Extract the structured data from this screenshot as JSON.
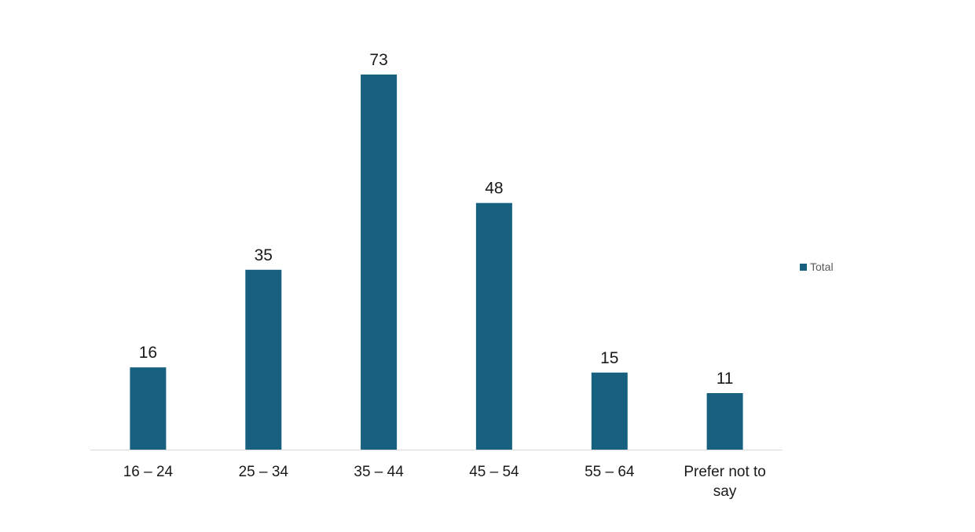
{
  "chart_data": {
    "type": "bar",
    "categories": [
      "16 – 24",
      "25 – 34",
      "35 – 44",
      "45 – 54",
      "55 – 64",
      "Prefer not to say"
    ],
    "series": [
      {
        "name": "Total",
        "values": [
          16,
          35,
          73,
          48,
          15,
          11
        ],
        "color": "#17607f"
      }
    ],
    "data_labels": true,
    "legend": {
      "position": "right",
      "entries": [
        "Total"
      ]
    },
    "grid": false,
    "ylim": [
      0,
      73
    ],
    "axis_line_color": "#d9d9d9"
  }
}
